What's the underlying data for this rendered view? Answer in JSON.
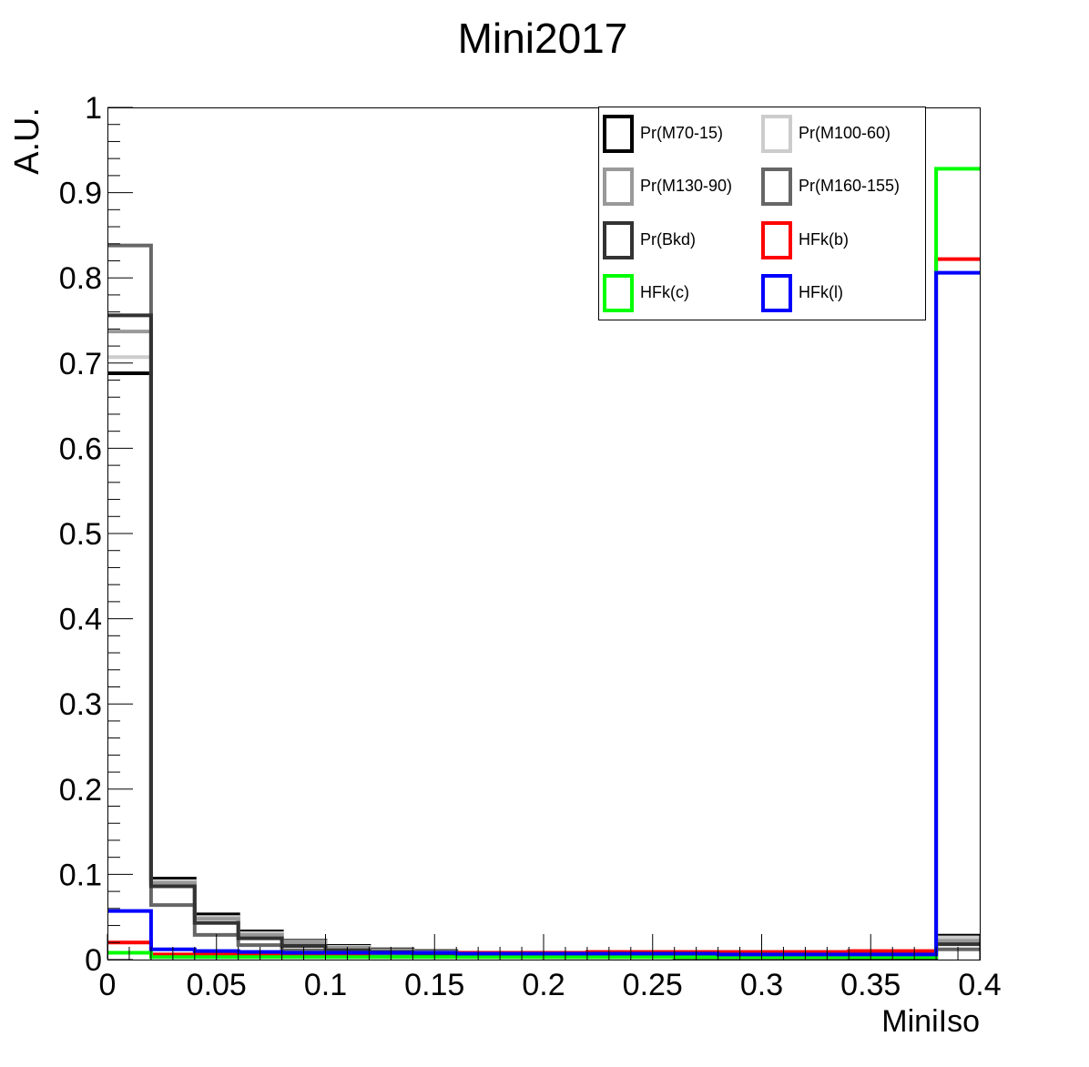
{
  "chart_data": {
    "type": "line",
    "step": true,
    "title": "Mini2017",
    "xlabel": "MiniIso",
    "ylabel": "A.U.",
    "xlim": [
      0,
      0.4
    ],
    "ylim": [
      0,
      1
    ],
    "x_ticks": [
      "0",
      "0.05",
      "0.1",
      "0.15",
      "0.2",
      "0.25",
      "0.3",
      "0.35",
      "0.4"
    ],
    "y_ticks": [
      "0",
      "0.1",
      "0.2",
      "0.3",
      "0.4",
      "0.5",
      "0.6",
      "0.7",
      "0.8",
      "0.9",
      "1"
    ],
    "bin_edges": [
      0,
      0.02,
      0.04,
      0.06,
      0.08,
      0.1,
      0.12,
      0.14,
      0.16,
      0.18,
      0.2,
      0.22,
      0.24,
      0.26,
      0.28,
      0.3,
      0.32,
      0.34,
      0.36,
      0.38,
      0.4
    ],
    "legend_position": "top-right",
    "series": [
      {
        "name": "Pr(M70-15)",
        "color": "#000000",
        "values": [
          0.688,
          0.095,
          0.053,
          0.033,
          0.022,
          0.016,
          0.012,
          0.01,
          0.008,
          0.007,
          0.006,
          0.006,
          0.005,
          0.005,
          0.004,
          0.004,
          0.004,
          0.004,
          0.003,
          0.028
        ]
      },
      {
        "name": "Pr(M100-60)",
        "color": "#cccccc",
        "values": [
          0.707,
          0.092,
          0.05,
          0.031,
          0.021,
          0.015,
          0.011,
          0.009,
          0.008,
          0.007,
          0.006,
          0.005,
          0.005,
          0.004,
          0.004,
          0.004,
          0.003,
          0.003,
          0.003,
          0.026
        ]
      },
      {
        "name": "Pr(M130-90)",
        "color": "#999999",
        "values": [
          0.737,
          0.09,
          0.048,
          0.029,
          0.02,
          0.014,
          0.011,
          0.009,
          0.007,
          0.006,
          0.005,
          0.005,
          0.004,
          0.004,
          0.004,
          0.003,
          0.003,
          0.003,
          0.003,
          0.022
        ]
      },
      {
        "name": "Pr(M160-155)",
        "color": "#666666",
        "values": [
          0.838,
          0.064,
          0.029,
          0.017,
          0.011,
          0.008,
          0.006,
          0.005,
          0.004,
          0.004,
          0.003,
          0.003,
          0.003,
          0.002,
          0.002,
          0.002,
          0.002,
          0.002,
          0.002,
          0.012
        ]
      },
      {
        "name": "Pr(Bkd)",
        "color": "#333333",
        "values": [
          0.756,
          0.086,
          0.043,
          0.025,
          0.016,
          0.011,
          0.009,
          0.007,
          0.006,
          0.005,
          0.004,
          0.004,
          0.004,
          0.003,
          0.003,
          0.003,
          0.003,
          0.002,
          0.002,
          0.018
        ]
      },
      {
        "name": "HFk(b)",
        "color": "#ff0000",
        "values": [
          0.02,
          0.006,
          0.006,
          0.007,
          0.007,
          0.007,
          0.008,
          0.008,
          0.008,
          0.008,
          0.008,
          0.009,
          0.009,
          0.009,
          0.009,
          0.009,
          0.009,
          0.01,
          0.01,
          0.822
        ]
      },
      {
        "name": "HFk(c)",
        "color": "#00ff00",
        "values": [
          0.008,
          0.003,
          0.003,
          0.003,
          0.003,
          0.003,
          0.003,
          0.003,
          0.003,
          0.003,
          0.003,
          0.003,
          0.003,
          0.003,
          0.003,
          0.003,
          0.003,
          0.003,
          0.003,
          0.928
        ]
      },
      {
        "name": "HFk(l)",
        "color": "#0000ff",
        "values": [
          0.057,
          0.012,
          0.01,
          0.009,
          0.008,
          0.008,
          0.008,
          0.008,
          0.007,
          0.007,
          0.007,
          0.007,
          0.007,
          0.007,
          0.006,
          0.006,
          0.006,
          0.006,
          0.006,
          0.806
        ]
      }
    ]
  }
}
